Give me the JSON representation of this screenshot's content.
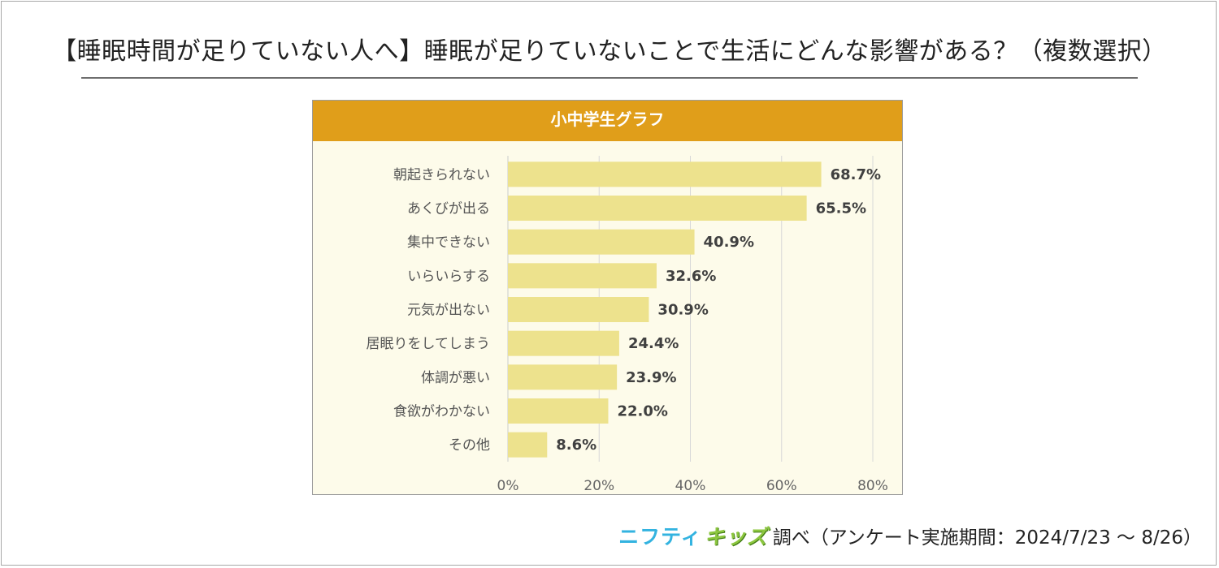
{
  "page": {
    "title": "【睡眠時間が足りていない人へ】睡眠が足りていないことで生活にどんな影響がある？（複数選択）"
  },
  "chart_data": {
    "type": "bar",
    "orientation": "horizontal",
    "title": "小中学生グラフ",
    "categories": [
      "朝起きられない",
      "あくびが出る",
      "集中できない",
      "いらいらする",
      "元気が出ない",
      "居眠りをしてしまう",
      "体調が悪い",
      "食欲がわかない",
      "その他"
    ],
    "values": [
      68.7,
      65.5,
      40.9,
      32.6,
      30.9,
      24.4,
      23.9,
      22.0,
      8.6
    ],
    "data_labels": [
      "68.7%",
      "65.5%",
      "40.9%",
      "32.6%",
      "30.9%",
      "24.4%",
      "23.9%",
      "22.0%",
      "8.6%"
    ],
    "xlim": [
      0,
      80
    ],
    "x_ticks": [
      0,
      20,
      40,
      60,
      80
    ],
    "x_tick_labels": [
      "0%",
      "20%",
      "40%",
      "60%",
      "80%"
    ],
    "grid": true,
    "colors": {
      "bar": "#ede28d",
      "header": "#e09e1a",
      "plot_background": "#fdfbea",
      "grid": "#d8d8d8"
    }
  },
  "footer": {
    "brand_nifty": "ニフティ",
    "brand_kids": "キッズ",
    "note": "調べ（アンケート実施期間：2024/7/23 ～ 8/26）"
  }
}
